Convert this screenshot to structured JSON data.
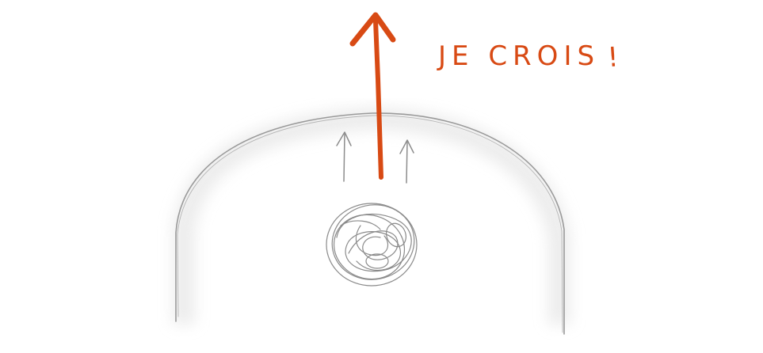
{
  "caption": {
    "text": "JE CROIS",
    "exclamation": "!"
  },
  "icons": {
    "main_arrow": "arrow-up-icon",
    "small_arrows": "arrow-up-icon",
    "scribble": "scribble-ball-icon"
  },
  "colors": {
    "accent": "#d84a14",
    "pencil": "#8a8a8a",
    "shade": "#e9e9e9",
    "background": "#ffffff"
  }
}
